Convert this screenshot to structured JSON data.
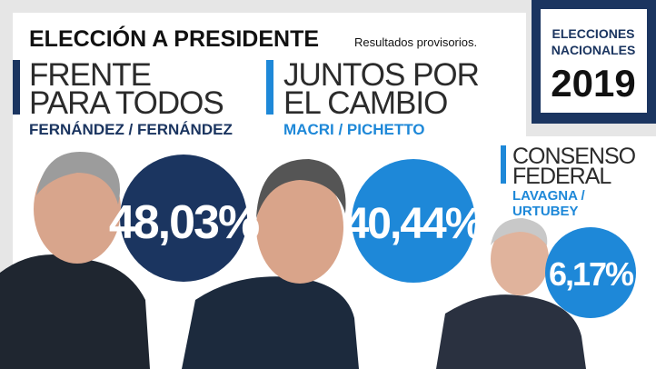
{
  "header": {
    "title": "ELECCIÓN A PRESIDENTE",
    "subtitle": "Resultados provisorios."
  },
  "badge": {
    "lines": [
      "ELECCIONES",
      "NACIONALES",
      "2019"
    ]
  },
  "candidates": [
    {
      "party": [
        "FRENTE",
        "PARA TODOS"
      ],
      "names": [
        "FERNÁNDEZ / FERNÁNDEZ"
      ],
      "result": "48,03%"
    },
    {
      "party": [
        "JUNTOS POR",
        "EL CAMBIO"
      ],
      "names": [
        "MACRI / PICHETTO"
      ],
      "result": "40,44%"
    },
    {
      "party": [
        "CONSENSO",
        "FEDERAL"
      ],
      "names": [
        "LAVAGNA /",
        "URTUBEY"
      ],
      "result": "6,17%"
    }
  ]
}
